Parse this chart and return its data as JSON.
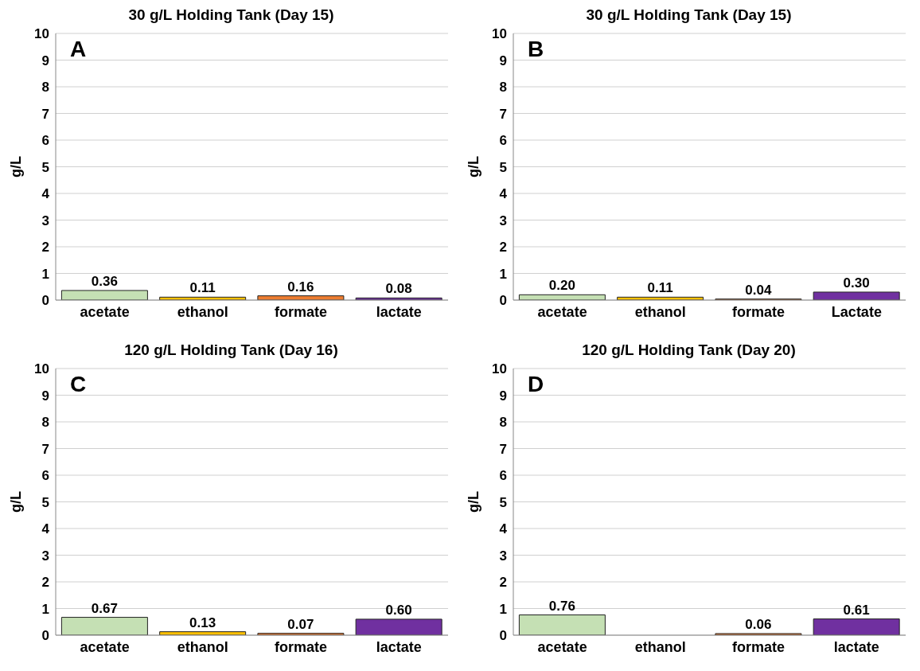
{
  "chart_data": [
    {
      "type": "bar",
      "title": "30 g/L Holding Tank (Day 15)",
      "ylabel": "g/L",
      "annotations": [
        "A"
      ],
      "categories": [
        "acetate",
        "ethanol",
        "formate",
        "lactate"
      ],
      "values": [
        0.36,
        0.11,
        0.16,
        0.08
      ],
      "value_labels": [
        "0.36",
        "0.11",
        "0.16",
        "0.08"
      ],
      "colors": [
        "#c5e0b4",
        "#ffc000",
        "#ed7d31",
        "#7030a0"
      ],
      "ylim": [
        0,
        10
      ],
      "yticks": [
        0,
        1,
        2,
        3,
        4,
        5,
        6,
        7,
        8,
        9,
        10
      ],
      "grid": "y"
    },
    {
      "type": "bar",
      "title": "30 g/L Holding Tank (Day 15)",
      "ylabel": "g/L",
      "annotations": [
        "B"
      ],
      "categories": [
        "acetate",
        "ethanol",
        "formate",
        "Lactate"
      ],
      "values": [
        0.2,
        0.11,
        0.04,
        0.3
      ],
      "value_labels": [
        "0.20",
        "0.11",
        "0.04",
        "0.30"
      ],
      "colors": [
        "#c5e0b4",
        "#ffc000",
        "#ed7d31",
        "#7030a0"
      ],
      "ylim": [
        0,
        10
      ],
      "yticks": [
        0,
        1,
        2,
        3,
        4,
        5,
        6,
        7,
        8,
        9,
        10
      ],
      "grid": "y"
    },
    {
      "type": "bar",
      "title": "120 g/L Holding Tank (Day 16)",
      "ylabel": "g/L",
      "annotations": [
        "C"
      ],
      "categories": [
        "acetate",
        "ethanol",
        "formate",
        "lactate"
      ],
      "values": [
        0.67,
        0.13,
        0.07,
        0.6
      ],
      "value_labels": [
        "0.67",
        "0.13",
        "0.07",
        "0.60"
      ],
      "colors": [
        "#c5e0b4",
        "#ffc000",
        "#ed7d31",
        "#7030a0"
      ],
      "ylim": [
        0,
        10
      ],
      "yticks": [
        0,
        1,
        2,
        3,
        4,
        5,
        6,
        7,
        8,
        9,
        10
      ],
      "grid": "y"
    },
    {
      "type": "bar",
      "title": "120 g/L Holding Tank (Day 20)",
      "ylabel": "g/L",
      "annotations": [
        "D"
      ],
      "categories": [
        "acetate",
        "ethanol",
        "formate",
        "lactate"
      ],
      "values": [
        0.76,
        null,
        0.06,
        0.61
      ],
      "value_labels": [
        "0.76",
        null,
        "0.06",
        "0.61"
      ],
      "colors": [
        "#c5e0b4",
        "#ffc000",
        "#ed7d31",
        "#7030a0"
      ],
      "ylim": [
        0,
        10
      ],
      "yticks": [
        0,
        1,
        2,
        3,
        4,
        5,
        6,
        7,
        8,
        9,
        10
      ],
      "grid": "y"
    }
  ]
}
